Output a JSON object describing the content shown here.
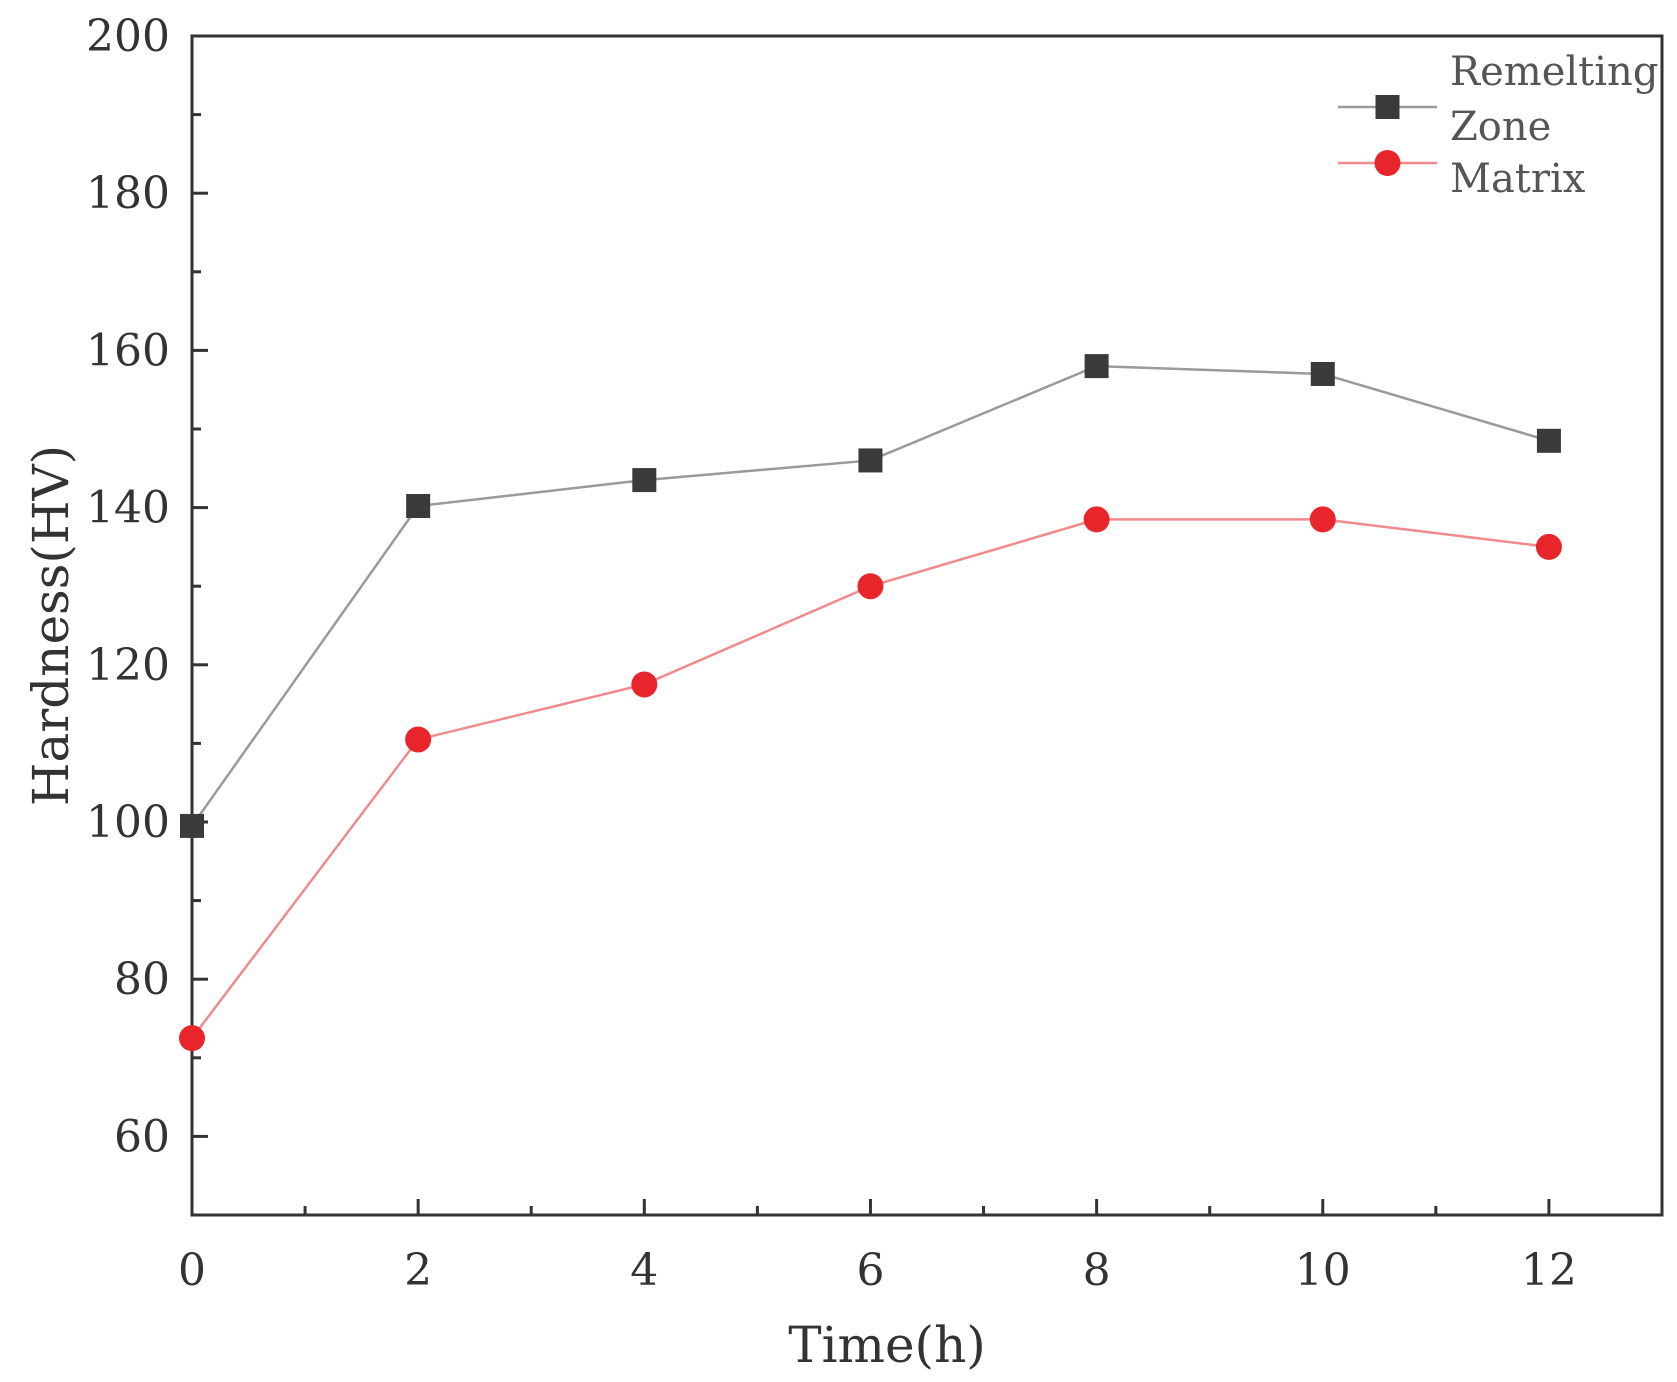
{
  "chart_data": {
    "type": "line",
    "title": "",
    "xlabel": "Time(h)",
    "ylabel": "Hardness(HV)",
    "x": [
      0,
      2,
      4,
      6,
      8,
      10,
      12
    ],
    "xlim": [
      0,
      13
    ],
    "ylim": [
      50,
      200
    ],
    "xticks": [
      0,
      2,
      4,
      6,
      8,
      10,
      12
    ],
    "yticks": [
      60,
      80,
      100,
      120,
      140,
      160,
      180,
      200
    ],
    "xtick_labels": [
      "0",
      "2",
      "4",
      "6",
      "8",
      "10",
      "12"
    ],
    "ytick_labels": [
      "60",
      "80",
      "100",
      "120",
      "140",
      "160",
      "180",
      "200"
    ],
    "grid": false,
    "legend_position": "top-right",
    "series": [
      {
        "name": "Remelting Zone",
        "legend_lines": [
          "Remelting",
          "Zone"
        ],
        "marker": "square",
        "color": "#3a3a3a",
        "line_color": "#9a9a9a",
        "values": [
          99.5,
          140.2,
          143.5,
          146.0,
          158.0,
          157.0,
          148.5
        ]
      },
      {
        "name": "Matrix",
        "legend_lines": [
          "Matrix"
        ],
        "marker": "circle",
        "color": "#e8252b",
        "line_color": "#f08a8c",
        "values": [
          72.5,
          110.5,
          117.5,
          130.0,
          138.5,
          138.5,
          135.0
        ]
      }
    ]
  }
}
